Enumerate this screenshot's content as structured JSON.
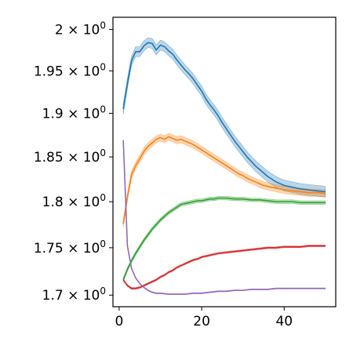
{
  "chart_data": {
    "type": "line",
    "title": "",
    "xlabel": "",
    "ylabel": "",
    "y_scale": "log",
    "xlim": [
      -1.5,
      52.5
    ],
    "ylim": [
      1.688,
      2.015
    ],
    "grid": false,
    "legend": "none",
    "x_ticks": [
      {
        "value": 0,
        "label": "0"
      },
      {
        "value": 20,
        "label": "20"
      },
      {
        "value": 40,
        "label": "40"
      }
    ],
    "y_ticks": [
      {
        "value": 1.7,
        "label": "1.7 × 10⁰"
      },
      {
        "value": 1.75,
        "label": "1.75 × 10⁰"
      },
      {
        "value": 1.8,
        "label": "1.8 × 10⁰"
      },
      {
        "value": 1.85,
        "label": "1.85 × 10⁰"
      },
      {
        "value": 1.9,
        "label": "1.9 × 10⁰"
      },
      {
        "value": 1.95,
        "label": "1.95 × 10⁰"
      },
      {
        "value": 2.0,
        "label": "2 × 10⁰"
      }
    ],
    "series": [
      {
        "color": "#1f77b4",
        "band": 0.006,
        "points": [
          [
            1,
            1.905
          ],
          [
            2,
            1.935
          ],
          [
            3,
            1.962
          ],
          [
            4,
            1.973
          ],
          [
            5,
            1.973
          ],
          [
            6,
            1.98
          ],
          [
            7,
            1.984
          ],
          [
            8,
            1.983
          ],
          [
            9,
            1.975
          ],
          [
            10,
            1.981
          ],
          [
            11,
            1.979
          ],
          [
            12,
            1.974
          ],
          [
            13,
            1.97
          ],
          [
            14,
            1.963
          ],
          [
            15,
            1.957
          ],
          [
            16,
            1.951
          ],
          [
            17,
            1.946
          ],
          [
            18,
            1.94
          ],
          [
            19,
            1.933
          ],
          [
            20,
            1.926
          ],
          [
            21,
            1.917
          ],
          [
            22,
            1.91
          ],
          [
            23,
            1.904
          ],
          [
            24,
            1.897
          ],
          [
            25,
            1.889
          ],
          [
            26,
            1.882
          ],
          [
            27,
            1.875
          ],
          [
            28,
            1.868
          ],
          [
            29,
            1.862
          ],
          [
            30,
            1.856
          ],
          [
            31,
            1.85
          ],
          [
            32,
            1.845
          ],
          [
            33,
            1.84
          ],
          [
            34,
            1.836
          ],
          [
            35,
            1.832
          ],
          [
            36,
            1.828
          ],
          [
            37,
            1.825
          ],
          [
            38,
            1.822
          ],
          [
            39,
            1.82
          ],
          [
            40,
            1.818
          ],
          [
            42,
            1.816
          ],
          [
            44,
            1.814
          ],
          [
            46,
            1.813
          ],
          [
            48,
            1.812
          ],
          [
            50,
            1.811
          ]
        ]
      },
      {
        "color": "#ff7f0e",
        "band": 0.004,
        "points": [
          [
            1,
            1.776
          ],
          [
            2,
            1.805
          ],
          [
            3,
            1.83
          ],
          [
            4,
            1.84
          ],
          [
            5,
            1.848
          ],
          [
            6,
            1.856
          ],
          [
            7,
            1.862
          ],
          [
            8,
            1.866
          ],
          [
            9,
            1.87
          ],
          [
            10,
            1.872
          ],
          [
            11,
            1.87
          ],
          [
            12,
            1.873
          ],
          [
            13,
            1.871
          ],
          [
            14,
            1.869
          ],
          [
            15,
            1.87
          ],
          [
            16,
            1.868
          ],
          [
            17,
            1.866
          ],
          [
            18,
            1.864
          ],
          [
            19,
            1.861
          ],
          [
            20,
            1.858
          ],
          [
            21,
            1.855
          ],
          [
            22,
            1.852
          ],
          [
            23,
            1.849
          ],
          [
            24,
            1.846
          ],
          [
            25,
            1.843
          ],
          [
            26,
            1.84
          ],
          [
            27,
            1.837
          ],
          [
            28,
            1.834
          ],
          [
            29,
            1.831
          ],
          [
            30,
            1.829
          ],
          [
            31,
            1.826
          ],
          [
            32,
            1.824
          ],
          [
            33,
            1.822
          ],
          [
            34,
            1.82
          ],
          [
            35,
            1.818
          ],
          [
            36,
            1.817
          ],
          [
            37,
            1.816
          ],
          [
            38,
            1.815
          ],
          [
            39,
            1.814
          ],
          [
            40,
            1.813
          ],
          [
            42,
            1.812
          ],
          [
            44,
            1.811
          ],
          [
            46,
            1.81
          ],
          [
            48,
            1.81
          ],
          [
            50,
            1.809
          ]
        ]
      },
      {
        "color": "#2ca02c",
        "band": 0.002,
        "points": [
          [
            1,
            1.716
          ],
          [
            2,
            1.727
          ],
          [
            3,
            1.736
          ],
          [
            4,
            1.744
          ],
          [
            5,
            1.751
          ],
          [
            6,
            1.758
          ],
          [
            7,
            1.764
          ],
          [
            8,
            1.77
          ],
          [
            9,
            1.775
          ],
          [
            10,
            1.78
          ],
          [
            11,
            1.784
          ],
          [
            12,
            1.788
          ],
          [
            13,
            1.791
          ],
          [
            14,
            1.794
          ],
          [
            15,
            1.797
          ],
          [
            16,
            1.798
          ],
          [
            17,
            1.799
          ],
          [
            18,
            1.8
          ],
          [
            19,
            1.801
          ],
          [
            20,
            1.801
          ],
          [
            21,
            1.802
          ],
          [
            22,
            1.803
          ],
          [
            23,
            1.803
          ],
          [
            24,
            1.804
          ],
          [
            25,
            1.804
          ],
          [
            26,
            1.804
          ],
          [
            28,
            1.803
          ],
          [
            30,
            1.803
          ],
          [
            32,
            1.802
          ],
          [
            34,
            1.802
          ],
          [
            36,
            1.801
          ],
          [
            38,
            1.8
          ],
          [
            40,
            1.8
          ],
          [
            42,
            1.8
          ],
          [
            44,
            1.799
          ],
          [
            46,
            1.799
          ],
          [
            48,
            1.799
          ],
          [
            50,
            1.799
          ]
        ]
      },
      {
        "color": "#d62728",
        "band": 0.001,
        "points": [
          [
            1,
            1.716
          ],
          [
            2,
            1.71
          ],
          [
            3,
            1.707
          ],
          [
            4,
            1.707
          ],
          [
            5,
            1.708
          ],
          [
            6,
            1.71
          ],
          [
            7,
            1.712
          ],
          [
            8,
            1.714
          ],
          [
            9,
            1.716
          ],
          [
            10,
            1.719
          ],
          [
            11,
            1.721
          ],
          [
            12,
            1.724
          ],
          [
            13,
            1.726
          ],
          [
            14,
            1.729
          ],
          [
            15,
            1.731
          ],
          [
            16,
            1.733
          ],
          [
            17,
            1.735
          ],
          [
            18,
            1.737
          ],
          [
            19,
            1.738
          ],
          [
            20,
            1.74
          ],
          [
            22,
            1.742
          ],
          [
            24,
            1.744
          ],
          [
            26,
            1.745
          ],
          [
            28,
            1.746
          ],
          [
            30,
            1.747
          ],
          [
            32,
            1.748
          ],
          [
            34,
            1.749
          ],
          [
            36,
            1.75
          ],
          [
            38,
            1.75
          ],
          [
            40,
            1.751
          ],
          [
            42,
            1.751
          ],
          [
            44,
            1.751
          ],
          [
            46,
            1.752
          ],
          [
            48,
            1.752
          ],
          [
            50,
            1.752
          ]
        ]
      },
      {
        "color": "#9467bd",
        "band": 0.0005,
        "points": [
          [
            1,
            1.869
          ],
          [
            2,
            1.752
          ],
          [
            3,
            1.728
          ],
          [
            4,
            1.718
          ],
          [
            5,
            1.712
          ],
          [
            6,
            1.708
          ],
          [
            7,
            1.705
          ],
          [
            8,
            1.703
          ],
          [
            9,
            1.702
          ],
          [
            10,
            1.702
          ],
          [
            12,
            1.701
          ],
          [
            14,
            1.701
          ],
          [
            16,
            1.701
          ],
          [
            18,
            1.702
          ],
          [
            20,
            1.702
          ],
          [
            22,
            1.703
          ],
          [
            24,
            1.704
          ],
          [
            26,
            1.704
          ],
          [
            28,
            1.705
          ],
          [
            30,
            1.705
          ],
          [
            32,
            1.706
          ],
          [
            34,
            1.706
          ],
          [
            36,
            1.706
          ],
          [
            38,
            1.707
          ],
          [
            40,
            1.707
          ],
          [
            42,
            1.707
          ],
          [
            44,
            1.707
          ],
          [
            46,
            1.707
          ],
          [
            48,
            1.707
          ],
          [
            50,
            1.707
          ]
        ]
      }
    ]
  }
}
